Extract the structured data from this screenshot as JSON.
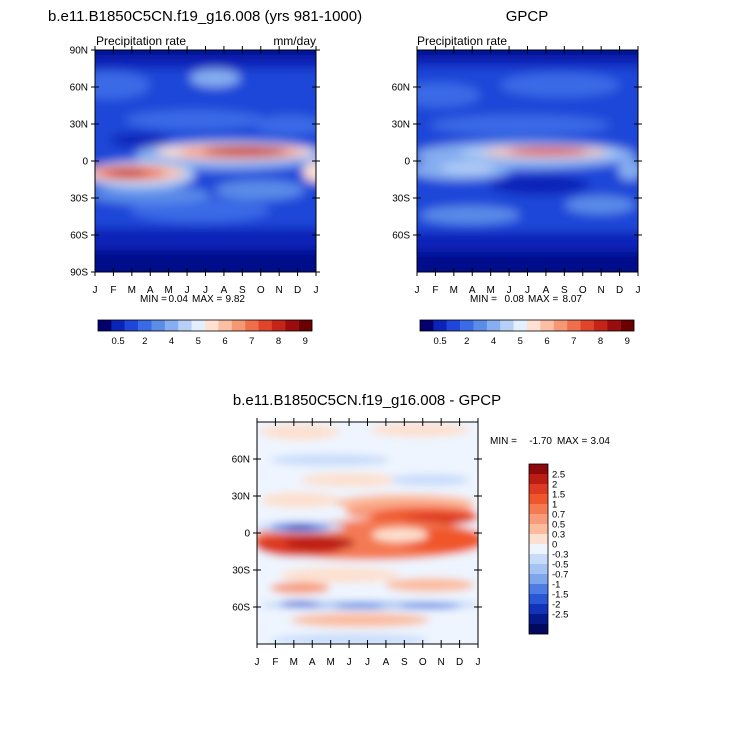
{
  "figure": {
    "panels": [
      {
        "title": "b.e11.B1850C5CN.f19_g16.008 (yrs 981-1000)",
        "left_label": "Precipitation rate",
        "right_label": "mm/day",
        "min_label": "MIN =",
        "min_value": "0.04",
        "max_label": "MAX =",
        "max_value": "9.82"
      },
      {
        "title": "GPCP",
        "left_label": "Precipitation rate",
        "right_label": "",
        "min_label": "MIN =",
        "min_value": "0.08",
        "max_label": "MAX =",
        "max_value": "8.07"
      },
      {
        "title": "b.e11.B1850C5CN.f19_g16.008 - GPCP",
        "left_label": "",
        "right_label": "",
        "min_label": "MIN =",
        "min_value": "-1.70",
        "max_label": "MAX =",
        "max_value": "3.04"
      }
    ],
    "colorbar_abs": {
      "labels": [
        "0.5",
        "2",
        "4",
        "5",
        "6",
        "7",
        "8",
        "9"
      ],
      "colors": [
        "#03006d",
        "#0a24b8",
        "#1f46d8",
        "#3b6ae6",
        "#5a8ce8",
        "#86aef0",
        "#b6d0f6",
        "#e3efff",
        "#ffe0d2",
        "#fbbfa3",
        "#f79874",
        "#ef6e4c",
        "#e0452c",
        "#c52419",
        "#9a0c0e",
        "#6a0000"
      ]
    },
    "colorbar_diff": {
      "labels": [
        "2.5",
        "2",
        "1.5",
        "1",
        "0.7",
        "0.5",
        "0.3",
        "0",
        "-0.3",
        "-0.5",
        "-0.7",
        "-1",
        "-1.5",
        "-2",
        "-2.5"
      ],
      "colors": [
        "#8d0a0a",
        "#bb1c13",
        "#dd3a23",
        "#f0562c",
        "#f47a52",
        "#f89b7a",
        "#fbbc9e",
        "#fde0cf",
        "#eef5ff",
        "#c8dcfa",
        "#a6c4f3",
        "#7ea6ec",
        "#4d7de4",
        "#2957d6",
        "#1033b8",
        "#06188a",
        "#020a5e"
      ]
    }
  },
  "chart_data": [
    {
      "type": "heatmap",
      "title": "b.e11.B1850C5CN.f19_g16.008 (yrs 981-1000)",
      "subtitle_left": "Precipitation rate",
      "subtitle_right": "mm/day",
      "x": [
        "J",
        "F",
        "M",
        "A",
        "M",
        "J",
        "J",
        "A",
        "S",
        "O",
        "N",
        "D",
        "J"
      ],
      "y_ticks": [
        "90N",
        "60N",
        "30N",
        "0",
        "30S",
        "60S",
        "90S"
      ],
      "ylim": [
        -90,
        90
      ],
      "units": "mm/day",
      "min": 0.04,
      "max": 9.82,
      "features": [
        {
          "lat": 8,
          "month_peak": 7.5,
          "value": 9.5
        },
        {
          "lat": -8,
          "month_peak": 2.5,
          "value": 8.0
        }
      ]
    },
    {
      "type": "heatmap",
      "title": "GPCP",
      "subtitle_left": "Precipitation rate",
      "x": [
        "J",
        "F",
        "M",
        "A",
        "M",
        "J",
        "J",
        "A",
        "S",
        "O",
        "N",
        "D",
        "J"
      ],
      "y_ticks": [
        "60N",
        "30N",
        "0",
        "30S",
        "60S"
      ],
      "ylim": [
        -90,
        90
      ],
      "units": "mm/day",
      "min": 0.08,
      "max": 8.07,
      "features": [
        {
          "lat": 6,
          "month_peak": 7.5,
          "value": 8.0
        }
      ]
    },
    {
      "type": "heatmap",
      "title": "b.e11.B1850C5CN.f19_g16.008 - GPCP",
      "x": [
        "J",
        "F",
        "M",
        "A",
        "M",
        "J",
        "J",
        "A",
        "S",
        "O",
        "N",
        "D",
        "J"
      ],
      "y_ticks": [
        "60N",
        "30N",
        "0",
        "30S",
        "60S"
      ],
      "ylim": [
        -90,
        90
      ],
      "min": -1.7,
      "max": 3.04,
      "colorbar_levels": [
        2.5,
        2,
        1.5,
        1,
        0.7,
        0.5,
        0.3,
        0,
        -0.3,
        -0.5,
        -0.7,
        -1,
        -1.5,
        -2,
        -2.5
      ]
    }
  ]
}
